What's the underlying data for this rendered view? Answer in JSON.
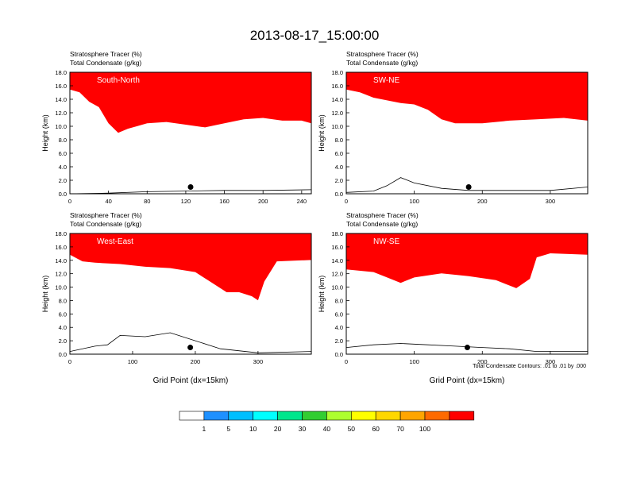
{
  "figure": {
    "title": "2013-08-17_15:00:00",
    "contour_note": "Total Condensate Contours: .01 to .01 by .000"
  },
  "colors": {
    "levels": [
      "#ffffff",
      "#1e90ff",
      "#00bfff",
      "#00ffff",
      "#00e68c",
      "#32cd32",
      "#adff2f",
      "#ffff00",
      "#ffd700",
      "#ffa500",
      "#ff6a00",
      "#ff0000"
    ],
    "frame": "#000000",
    "contour": "#000000"
  },
  "colorbar": {
    "labels": [
      "1",
      "5",
      "10",
      "20",
      "30",
      "40",
      "50",
      "60",
      "70",
      "100"
    ]
  },
  "chart_data": [
    {
      "type": "heatmap",
      "label": "South-North",
      "subtitle_line1": "Stratosphere Tracer   (%)",
      "subtitle_line2": "Total Condensate   (g/kg)",
      "ylabel": "Height (km)",
      "xlabel": "",
      "xlim": [
        0,
        250
      ],
      "ylim": [
        0,
        18
      ],
      "xticks": [
        "0",
        "40",
        "80",
        "120",
        "160",
        "200",
        "240"
      ],
      "xtick_values": [
        0,
        40,
        80,
        120,
        160,
        200,
        240
      ],
      "yticks": [
        "0.0",
        "2.0",
        "4.0",
        "6.0",
        "8.0",
        "10.0",
        "12.0",
        "14.0",
        "16.0",
        "18.0"
      ],
      "tropopause_km": [
        [
          0,
          15.0
        ],
        [
          10,
          14.6
        ],
        [
          20,
          13.2
        ],
        [
          30,
          12.4
        ],
        [
          40,
          10.0
        ],
        [
          50,
          8.6
        ],
        [
          60,
          9.2
        ],
        [
          70,
          9.6
        ],
        [
          80,
          10.0
        ],
        [
          100,
          10.2
        ],
        [
          120,
          9.8
        ],
        [
          140,
          9.4
        ],
        [
          160,
          10.0
        ],
        [
          180,
          10.6
        ],
        [
          200,
          10.8
        ],
        [
          220,
          10.4
        ],
        [
          240,
          10.4
        ],
        [
          250,
          10.0
        ]
      ],
      "terrain_km": [
        [
          0,
          0.0
        ],
        [
          40,
          0.1
        ],
        [
          80,
          0.3
        ],
        [
          120,
          0.4
        ],
        [
          160,
          0.5
        ],
        [
          200,
          0.5
        ],
        [
          250,
          0.6
        ]
      ],
      "marker": [
        125,
        1.0
      ]
    },
    {
      "type": "heatmap",
      "label": "SW-NE",
      "subtitle_line1": "Stratosphere Tracer   (%)",
      "subtitle_line2": "Total Condensate   (g/kg)",
      "ylabel": "Height (km)",
      "xlabel": "",
      "xlim": [
        0,
        355
      ],
      "ylim": [
        0,
        18
      ],
      "xticks": [
        "0",
        "100",
        "200",
        "300"
      ],
      "xtick_values": [
        0,
        100,
        200,
        300
      ],
      "yticks": [
        "0.0",
        "2.0",
        "4.0",
        "6.0",
        "8.0",
        "10.0",
        "12.0",
        "14.0",
        "16.0",
        "18.0"
      ],
      "tropopause_km": [
        [
          0,
          15.0
        ],
        [
          20,
          14.6
        ],
        [
          40,
          13.8
        ],
        [
          60,
          13.4
        ],
        [
          80,
          13.0
        ],
        [
          100,
          12.8
        ],
        [
          120,
          12.0
        ],
        [
          140,
          10.6
        ],
        [
          160,
          10.0
        ],
        [
          200,
          10.0
        ],
        [
          240,
          10.4
        ],
        [
          280,
          10.6
        ],
        [
          320,
          10.8
        ],
        [
          355,
          10.4
        ]
      ],
      "terrain_km": [
        [
          0,
          0.2
        ],
        [
          40,
          0.4
        ],
        [
          60,
          1.2
        ],
        [
          80,
          2.4
        ],
        [
          100,
          1.6
        ],
        [
          140,
          0.8
        ],
        [
          180,
          0.5
        ],
        [
          240,
          0.5
        ],
        [
          300,
          0.5
        ],
        [
          355,
          1.0
        ]
      ],
      "marker": [
        180,
        1.0
      ]
    },
    {
      "type": "heatmap",
      "label": "West-East",
      "subtitle_line1": "Stratosphere Tracer   (%)",
      "subtitle_line2": "Total Condensate   (g/kg)",
      "ylabel": "Height (km)",
      "xlabel": "Grid Point (dx=15km)",
      "xlim": [
        0,
        385
      ],
      "ylim": [
        0,
        18
      ],
      "xticks": [
        "0",
        "100",
        "200",
        "300"
      ],
      "xtick_values": [
        0,
        100,
        200,
        300
      ],
      "yticks": [
        "0.0",
        "2.0",
        "4.0",
        "6.0",
        "8.0",
        "10.0",
        "12.0",
        "14.0",
        "16.0",
        "18.0"
      ],
      "tropopause_km": [
        [
          0,
          14.4
        ],
        [
          20,
          13.4
        ],
        [
          40,
          13.2
        ],
        [
          80,
          13.0
        ],
        [
          120,
          12.6
        ],
        [
          160,
          12.4
        ],
        [
          200,
          11.8
        ],
        [
          220,
          10.6
        ],
        [
          250,
          8.8
        ],
        [
          270,
          8.8
        ],
        [
          290,
          8.2
        ],
        [
          300,
          7.6
        ],
        [
          310,
          10.4
        ],
        [
          330,
          13.4
        ],
        [
          385,
          13.6
        ]
      ],
      "terrain_km": [
        [
          0,
          0.4
        ],
        [
          40,
          1.2
        ],
        [
          60,
          1.4
        ],
        [
          80,
          2.8
        ],
        [
          120,
          2.6
        ],
        [
          160,
          3.2
        ],
        [
          200,
          2.0
        ],
        [
          240,
          0.8
        ],
        [
          300,
          0.2
        ],
        [
          385,
          0.4
        ]
      ],
      "marker": [
        192,
        1.0
      ]
    },
    {
      "type": "heatmap",
      "label": "NW-SE",
      "subtitle_line1": "Stratosphere Tracer   (%)",
      "subtitle_line2": "Total Condensate   (g/kg)",
      "ylabel": "Height (km)",
      "xlabel": "Grid Point (dx=15km)",
      "xlim": [
        0,
        355
      ],
      "ylim": [
        0,
        18
      ],
      "xticks": [
        "0",
        "100",
        "200",
        "300"
      ],
      "xtick_values": [
        0,
        100,
        200,
        300
      ],
      "yticks": [
        "0.0",
        "2.0",
        "4.0",
        "6.0",
        "8.0",
        "10.0",
        "12.0",
        "14.0",
        "16.0",
        "18.0"
      ],
      "tropopause_km": [
        [
          0,
          12.2
        ],
        [
          40,
          11.8
        ],
        [
          60,
          11.0
        ],
        [
          80,
          10.2
        ],
        [
          100,
          11.0
        ],
        [
          140,
          11.6
        ],
        [
          180,
          11.2
        ],
        [
          220,
          10.6
        ],
        [
          250,
          9.4
        ],
        [
          270,
          10.8
        ],
        [
          280,
          14.0
        ],
        [
          300,
          14.6
        ],
        [
          355,
          14.4
        ]
      ],
      "terrain_km": [
        [
          0,
          1.0
        ],
        [
          40,
          1.4
        ],
        [
          80,
          1.6
        ],
        [
          120,
          1.4
        ],
        [
          160,
          1.2
        ],
        [
          200,
          1.0
        ],
        [
          240,
          0.8
        ],
        [
          280,
          0.4
        ],
        [
          355,
          0.4
        ]
      ],
      "marker": [
        178,
        1.0
      ]
    }
  ]
}
